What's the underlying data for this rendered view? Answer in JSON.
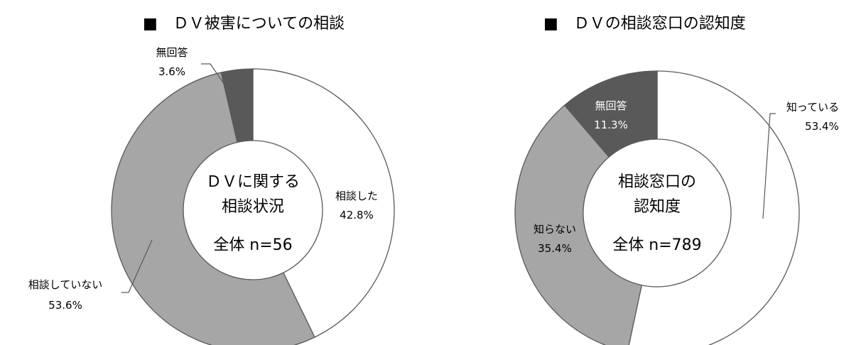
{
  "chart_data": [
    {
      "type": "pie",
      "title": "■　ＤＶ被害についての相談",
      "center_lines": [
        "ＤＶに関する",
        "相談状況",
        "全体  n=56"
      ],
      "slices": [
        {
          "label": "相談した",
          "value_text": "42.8%",
          "value": 42.8,
          "color": "#ffffff"
        },
        {
          "label": "相談していない",
          "value_text": "53.6%",
          "value": 53.6,
          "color": "#a6a6a6"
        },
        {
          "label": "無回答",
          "value_text": "3.6%",
          "value": 3.6,
          "color": "#595959"
        }
      ]
    },
    {
      "type": "pie",
      "title": "■　ＤＶの相談窓口の認知度",
      "center_lines": [
        "相談窓口の",
        "認知度",
        "全体  n=789"
      ],
      "slices": [
        {
          "label": "知っている",
          "value_text": "53.4%",
          "value": 53.4,
          "color": "#ffffff"
        },
        {
          "label": "知らない",
          "value_text": "35.4%",
          "value": 35.4,
          "color": "#a6a6a6"
        },
        {
          "label": "無回答",
          "value_text": "11.3%",
          "value": 11.3,
          "color": "#595959"
        }
      ]
    }
  ]
}
